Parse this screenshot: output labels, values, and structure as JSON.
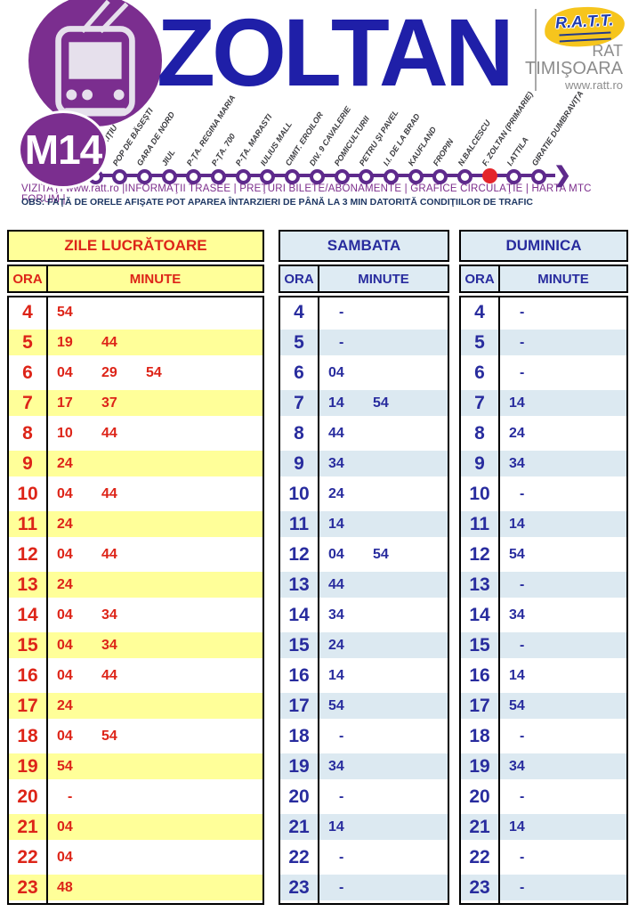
{
  "header": {
    "route_code": "M14",
    "route_name": "ZOLTAN",
    "operator": {
      "logo_text": "R.A.T.T.",
      "name_line1": "RAT",
      "name_line2": "TIMIŞOARA",
      "website": "www.ratt.ro"
    }
  },
  "route": {
    "stations": [
      {
        "name": "GH.BARIŢIU",
        "highlighted": false
      },
      {
        "name": "POP DE BĂSEŞTI",
        "highlighted": false
      },
      {
        "name": "GARA DE NORD",
        "highlighted": false
      },
      {
        "name": "JIUL",
        "highlighted": false
      },
      {
        "name": "P-ŢA. REGINA MARIA",
        "highlighted": false
      },
      {
        "name": "P-ŢA. 700",
        "highlighted": false
      },
      {
        "name": "P-ŢA. MARASTI",
        "highlighted": false
      },
      {
        "name": "IULIUS MALL",
        "highlighted": false
      },
      {
        "name": "CIMIT. EROILOR",
        "highlighted": false
      },
      {
        "name": "DIV. 9 CAVALERIE",
        "highlighted": false
      },
      {
        "name": "POMICULTURII",
        "highlighted": false
      },
      {
        "name": "PETRU ŞI PAVEL",
        "highlighted": false
      },
      {
        "name": "I.I. DE LA BRAD",
        "highlighted": false
      },
      {
        "name": "KAUFLAND",
        "highlighted": false
      },
      {
        "name": "FROPIN",
        "highlighted": false
      },
      {
        "name": "N.BALCESCU",
        "highlighted": false
      },
      {
        "name": "F. ZOLTAN (PRIMARIE)",
        "highlighted": true
      },
      {
        "name": "I.ATTILA",
        "highlighted": false
      },
      {
        "name": "GIRATIE DUMBRAVIŢA",
        "highlighted": false
      }
    ]
  },
  "links_line": "VIZITAŢI www.ratt.ro |INFORMAŢII TRASEE | PREŢURI BILETE/ABONAMENTE | GRAFICE CIRCULAŢIE | HARTA MTC   FORUM   |",
  "note_line": "OBS: FAŢĂ DE ORELE AFIŞATE POT APAREA ÎNTARZIERI DE PÂNĂ LA 3 MIN DATORITĂ CONDIŢIILOR DE TRAFIC",
  "colors": {
    "brand_purple": "#7b2e8f",
    "line_purple": "#5e2a8c",
    "title_blue": "#1f1fa8",
    "weekday_accent": "#dd2418",
    "weekday_band": "#ffff99",
    "weekend_accent": "#282c9e",
    "weekend_band": "#dce9f1",
    "highlight_station_red": "#e4252b",
    "ratt_logo_yellow": "#f6c51d"
  },
  "chart_data": {
    "type": "table",
    "title": "M14 ZOLTAN timetable",
    "tables": [
      {
        "id": "weekdays",
        "title": "ZILE LUCRĂTOARE",
        "col_hour": "ORA",
        "col_minute": "MINUTE",
        "theme": "yellow",
        "rows": [
          {
            "hour": "4",
            "minutes": [
              "54"
            ]
          },
          {
            "hour": "5",
            "minutes": [
              "19",
              "44"
            ]
          },
          {
            "hour": "6",
            "minutes": [
              "04",
              "29",
              "54"
            ]
          },
          {
            "hour": "7",
            "minutes": [
              "17",
              "37"
            ]
          },
          {
            "hour": "8",
            "minutes": [
              "10",
              "44"
            ]
          },
          {
            "hour": "9",
            "minutes": [
              "24"
            ]
          },
          {
            "hour": "10",
            "minutes": [
              "04",
              "44"
            ]
          },
          {
            "hour": "11",
            "minutes": [
              "24"
            ]
          },
          {
            "hour": "12",
            "minutes": [
              "04",
              "44"
            ]
          },
          {
            "hour": "13",
            "minutes": [
              "24"
            ]
          },
          {
            "hour": "14",
            "minutes": [
              "04",
              "34"
            ]
          },
          {
            "hour": "15",
            "minutes": [
              "04",
              "34"
            ]
          },
          {
            "hour": "16",
            "minutes": [
              "04",
              "44"
            ]
          },
          {
            "hour": "17",
            "minutes": [
              "24"
            ]
          },
          {
            "hour": "18",
            "minutes": [
              "04",
              "54"
            ]
          },
          {
            "hour": "19",
            "minutes": [
              "54"
            ]
          },
          {
            "hour": "20",
            "minutes": [
              "-"
            ]
          },
          {
            "hour": "21",
            "minutes": [
              "04"
            ]
          },
          {
            "hour": "22",
            "minutes": [
              "04"
            ]
          },
          {
            "hour": "23",
            "minutes": [
              "48"
            ]
          }
        ]
      },
      {
        "id": "saturday",
        "title": "SAMBATA",
        "col_hour": "ORA",
        "col_minute": "MINUTE",
        "theme": "blue",
        "rows": [
          {
            "hour": "4",
            "minutes": [
              "-"
            ]
          },
          {
            "hour": "5",
            "minutes": [
              "-"
            ]
          },
          {
            "hour": "6",
            "minutes": [
              "04"
            ]
          },
          {
            "hour": "7",
            "minutes": [
              "14",
              "54"
            ]
          },
          {
            "hour": "8",
            "minutes": [
              "44"
            ]
          },
          {
            "hour": "9",
            "minutes": [
              "34"
            ]
          },
          {
            "hour": "10",
            "minutes": [
              "24"
            ]
          },
          {
            "hour": "11",
            "minutes": [
              "14"
            ]
          },
          {
            "hour": "12",
            "minutes": [
              "04",
              "54"
            ]
          },
          {
            "hour": "13",
            "minutes": [
              "44"
            ]
          },
          {
            "hour": "14",
            "minutes": [
              "34"
            ]
          },
          {
            "hour": "15",
            "minutes": [
              "24"
            ]
          },
          {
            "hour": "16",
            "minutes": [
              "14"
            ]
          },
          {
            "hour": "17",
            "minutes": [
              "54"
            ]
          },
          {
            "hour": "18",
            "minutes": [
              "-"
            ]
          },
          {
            "hour": "19",
            "minutes": [
              "34"
            ]
          },
          {
            "hour": "20",
            "minutes": [
              "-"
            ]
          },
          {
            "hour": "21",
            "minutes": [
              "14"
            ]
          },
          {
            "hour": "22",
            "minutes": [
              "-"
            ]
          },
          {
            "hour": "23",
            "minutes": [
              "-"
            ]
          }
        ]
      },
      {
        "id": "sunday",
        "title": "DUMINICA",
        "col_hour": "ORA",
        "col_minute": "MINUTE",
        "theme": "blue",
        "rows": [
          {
            "hour": "4",
            "minutes": [
              "-"
            ]
          },
          {
            "hour": "5",
            "minutes": [
              "-"
            ]
          },
          {
            "hour": "6",
            "minutes": [
              "-"
            ]
          },
          {
            "hour": "7",
            "minutes": [
              "14"
            ]
          },
          {
            "hour": "8",
            "minutes": [
              "24"
            ]
          },
          {
            "hour": "9",
            "minutes": [
              "34"
            ]
          },
          {
            "hour": "10",
            "minutes": [
              "-"
            ]
          },
          {
            "hour": "11",
            "minutes": [
              "14"
            ]
          },
          {
            "hour": "12",
            "minutes": [
              "54"
            ]
          },
          {
            "hour": "13",
            "minutes": [
              "-"
            ]
          },
          {
            "hour": "14",
            "minutes": [
              "34"
            ]
          },
          {
            "hour": "15",
            "minutes": [
              "-"
            ]
          },
          {
            "hour": "16",
            "minutes": [
              "14"
            ]
          },
          {
            "hour": "17",
            "minutes": [
              "54"
            ]
          },
          {
            "hour": "18",
            "minutes": [
              "-"
            ]
          },
          {
            "hour": "19",
            "minutes": [
              "34"
            ]
          },
          {
            "hour": "20",
            "minutes": [
              "-"
            ]
          },
          {
            "hour": "21",
            "minutes": [
              "14"
            ]
          },
          {
            "hour": "22",
            "minutes": [
              "-"
            ]
          },
          {
            "hour": "23",
            "minutes": [
              "-"
            ]
          }
        ]
      }
    ]
  }
}
